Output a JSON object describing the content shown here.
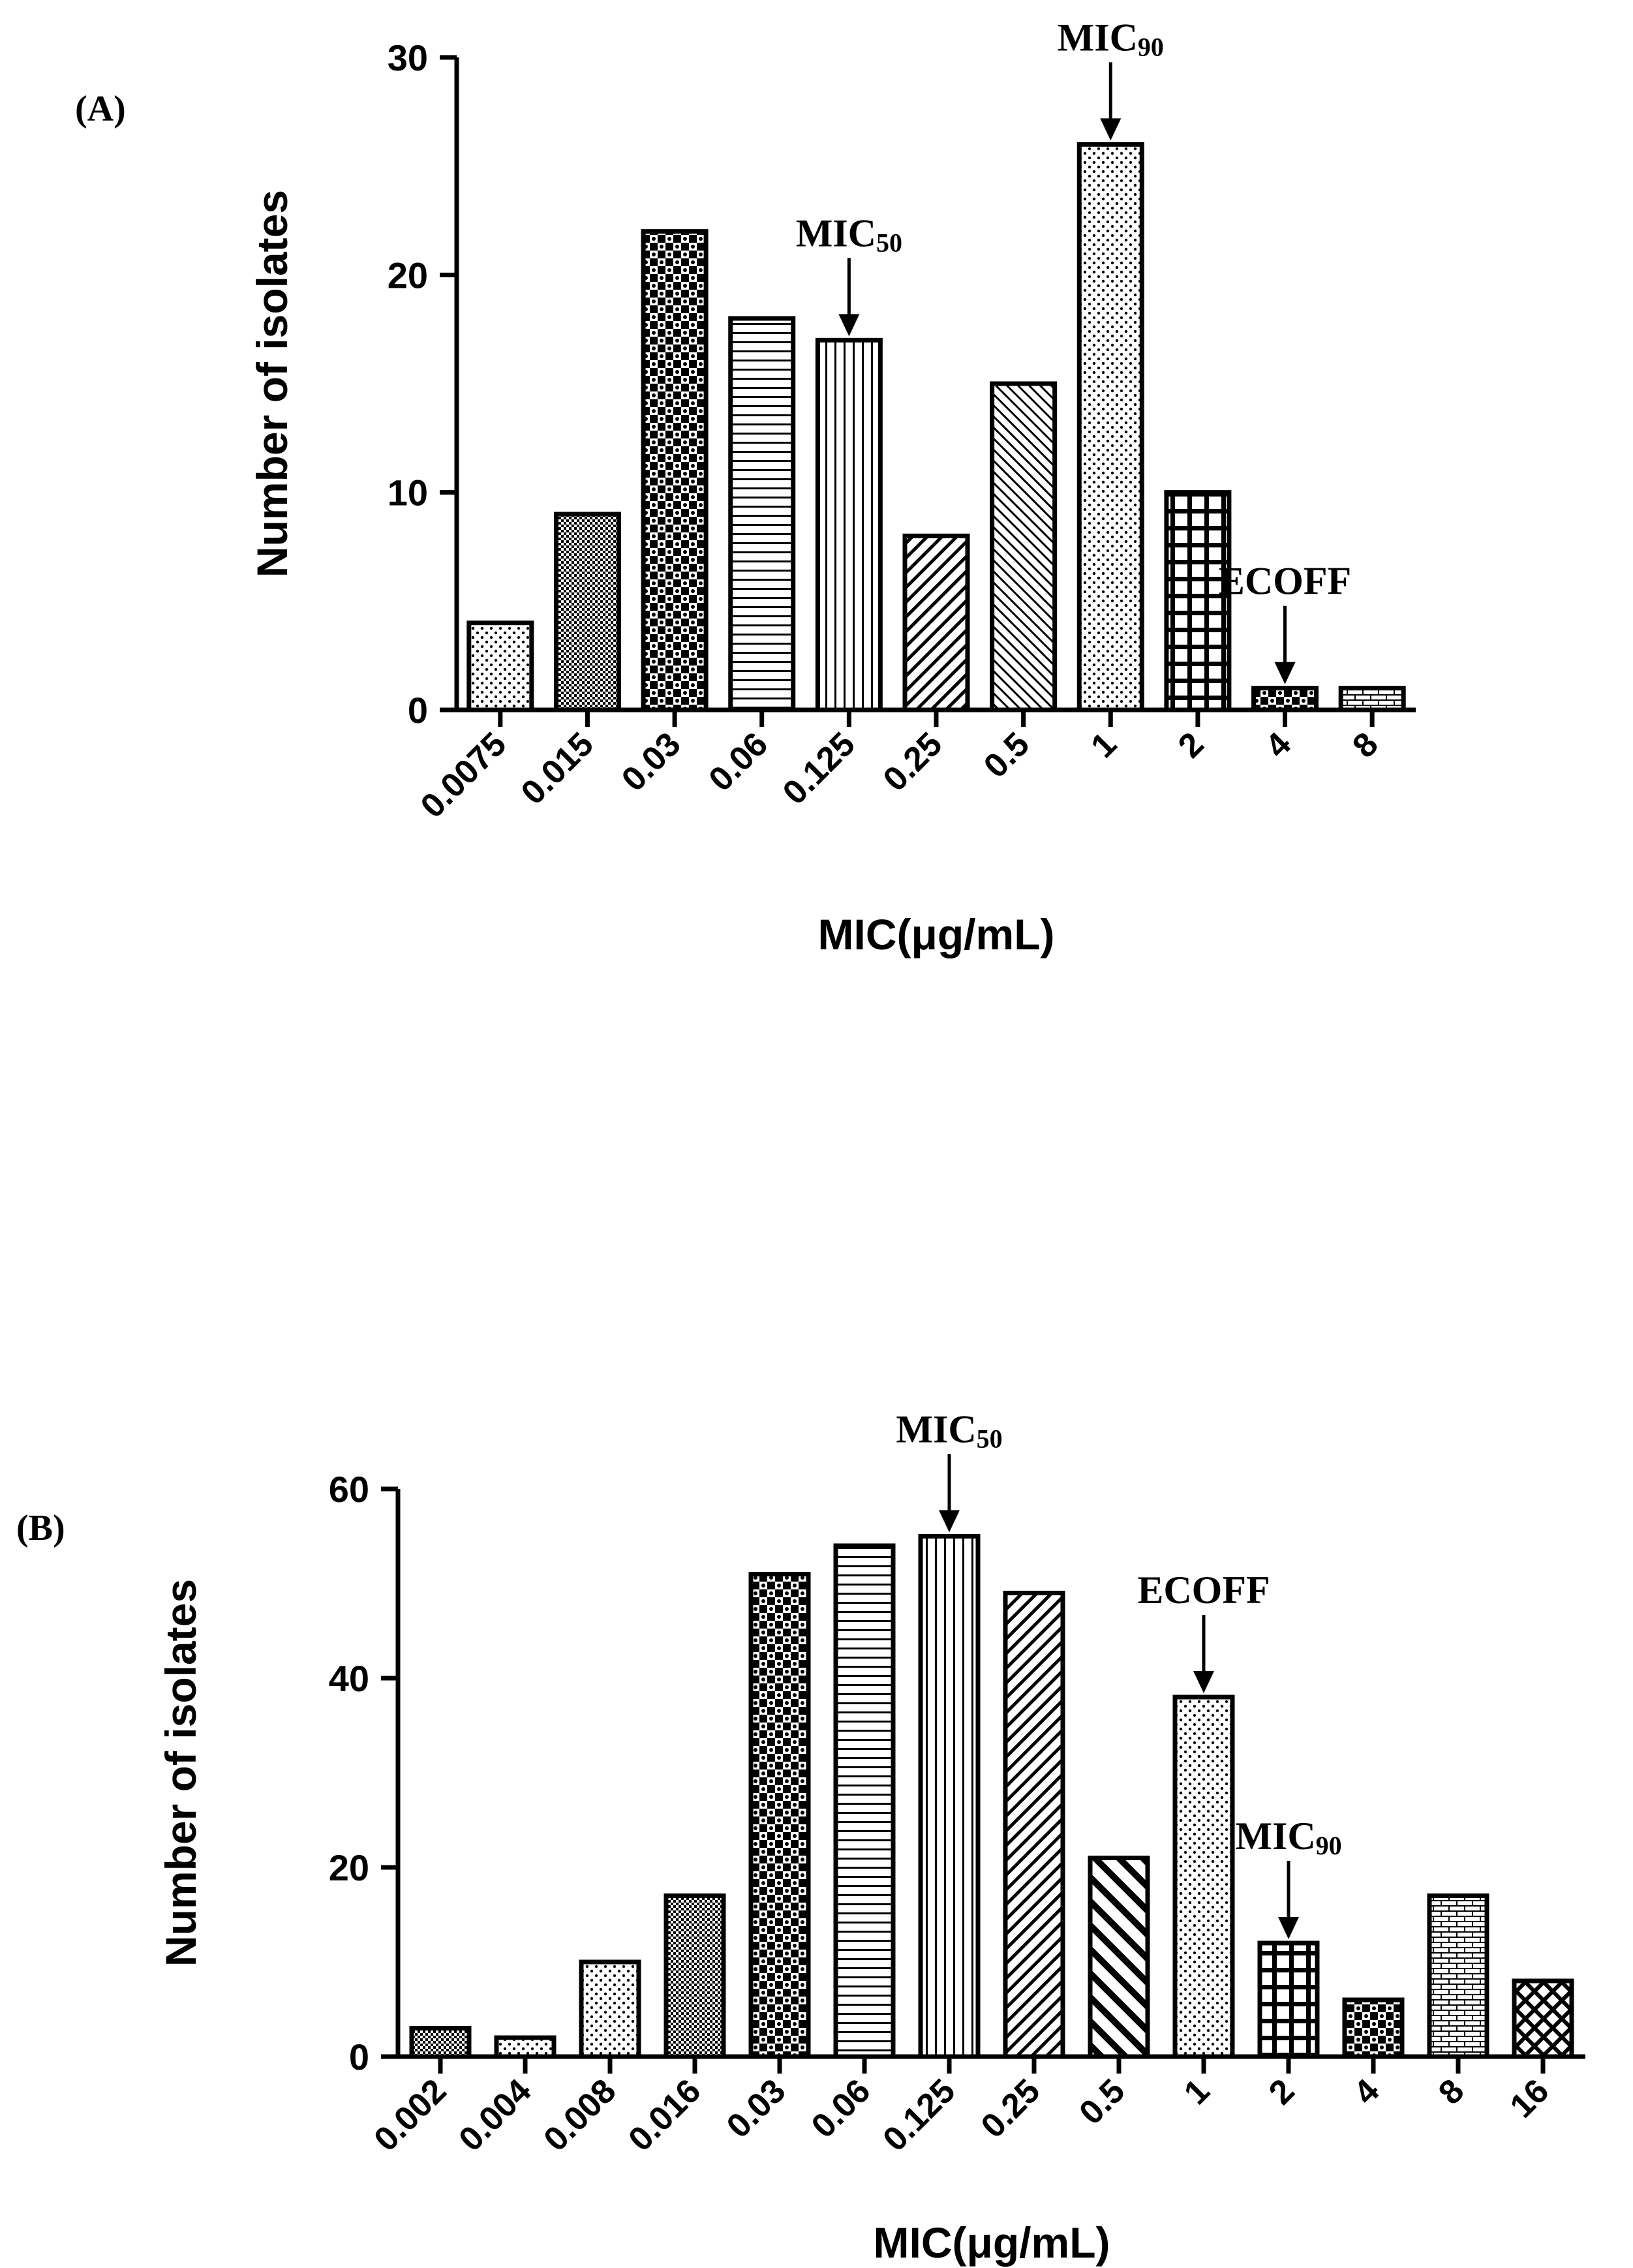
{
  "chart_data": [
    {
      "type": "bar",
      "panel_label": "(A)",
      "xlabel": "MIC(μg/mL)",
      "ylabel": "Number of isolates",
      "ylim": [
        0,
        30
      ],
      "yticks": [
        "0",
        "10",
        "20",
        "30"
      ],
      "categories": [
        "0.0075",
        "0.015",
        "0.03",
        "0.06",
        "0.125",
        "0.25",
        "0.5",
        "1",
        "2",
        "4",
        "8"
      ],
      "values": [
        4,
        9,
        22,
        18,
        17,
        8,
        15,
        26,
        10,
        1,
        1
      ],
      "patterns": [
        "dots",
        "dense",
        "checker",
        "hlines",
        "vlines",
        "diag",
        "diagfine",
        "dots",
        "grid",
        "checker",
        "bricks"
      ],
      "annotations": [
        {
          "text": "MIC",
          "sub": "50",
          "category": "0.125"
        },
        {
          "text": "MIC",
          "sub": "90",
          "category": "1"
        },
        {
          "text": "ECOFF",
          "sub": "",
          "category": "4"
        }
      ]
    },
    {
      "type": "bar",
      "panel_label": "(B)",
      "xlabel": "MIC(μg/mL)",
      "ylabel": "Number of isolates",
      "ylim": [
        0,
        60
      ],
      "yticks": [
        "0",
        "20",
        "40",
        "60"
      ],
      "categories": [
        "0.002",
        "0.004",
        "0.008",
        "0.016",
        "0.03",
        "0.06",
        "0.125",
        "0.25",
        "0.5",
        "1",
        "2",
        "4",
        "8",
        "16"
      ],
      "values": [
        3,
        2,
        10,
        17,
        51,
        54,
        55,
        49,
        21,
        38,
        12,
        6,
        17,
        8
      ],
      "patterns": [
        "dense",
        "dots",
        "dots",
        "dense",
        "checker",
        "hlines",
        "vlines",
        "diag",
        "diagrev",
        "dots",
        "grid",
        "checker",
        "bricks",
        "cross"
      ],
      "annotations": [
        {
          "text": "MIC",
          "sub": "50",
          "category": "0.125"
        },
        {
          "text": "ECOFF",
          "sub": "",
          "category": "1"
        },
        {
          "text": "MIC",
          "sub": "90",
          "category": "2"
        }
      ]
    }
  ]
}
